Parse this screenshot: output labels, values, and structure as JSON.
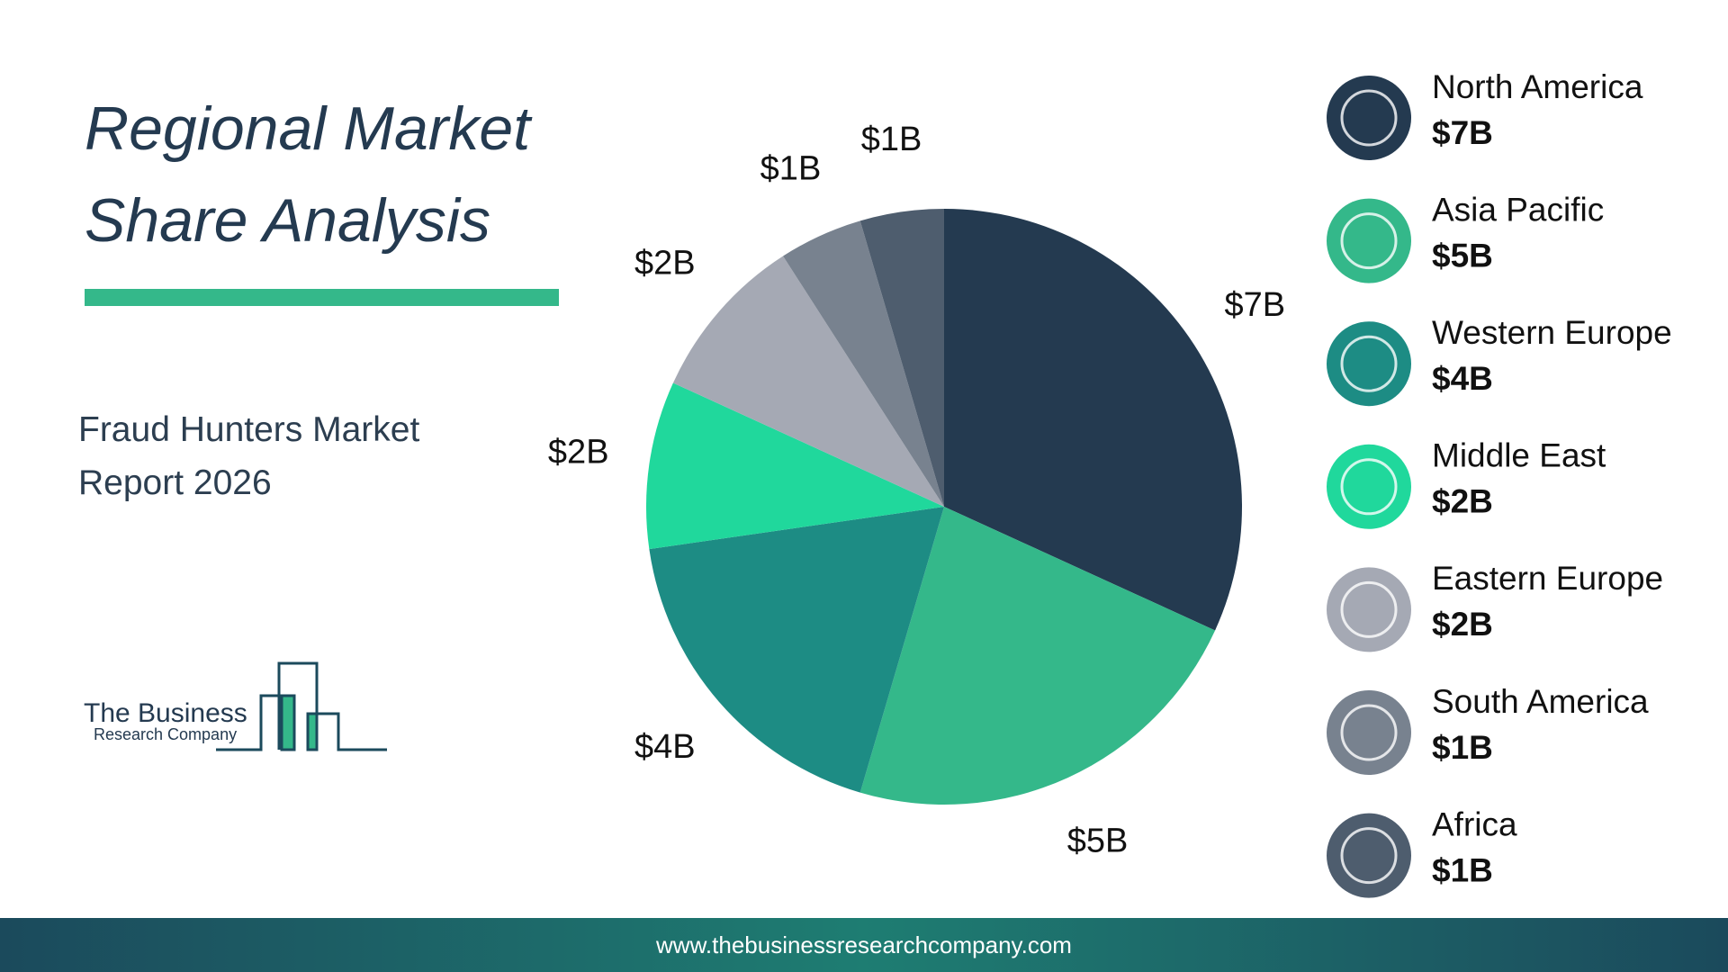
{
  "title": "Regional Market Share Analysis",
  "subtitle": "Fraud Hunters Market Report 2026",
  "logo": {
    "line1": "The Business",
    "line2": "Research Company"
  },
  "footer": "www.thebusinessresearchcompany.com",
  "chart_data": {
    "type": "pie",
    "categories": [
      "North America",
      "Asia Pacific",
      "Western Europe",
      "Middle East",
      "Eastern Europe",
      "South America",
      "Africa"
    ],
    "values": [
      7,
      5,
      4,
      2,
      2,
      1,
      1
    ],
    "value_labels": [
      "$7B",
      "$5B",
      "$4B",
      "$2B",
      "$2B",
      "$1B",
      "$1B"
    ],
    "colors": [
      "#243a50",
      "#34b88a",
      "#1d8c84",
      "#20d89c",
      "#a5a9b4",
      "#78828f",
      "#4e5d6e"
    ]
  }
}
